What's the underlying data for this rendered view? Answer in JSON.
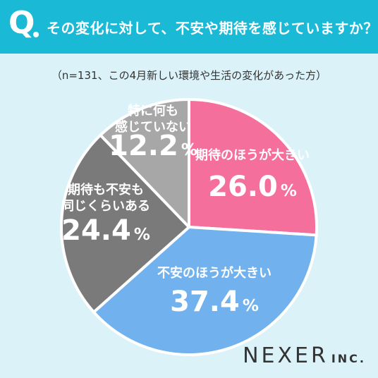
{
  "header": {
    "icon": "Q",
    "question": "その変化に対して、不安や期待を感じていますか？",
    "background_color": "#1ab9d6"
  },
  "note": "（n=131、この4月新しい環境や生活の変化があった方）",
  "chart_data": {
    "type": "pie",
    "n": 131,
    "slices": [
      {
        "label_lines": [
          "期待のほうが大きい"
        ],
        "value": 26.0,
        "display": "26.0",
        "color": "#f56f9c",
        "label_color": "#ffffff"
      },
      {
        "label_lines": [
          "不安のほうが大きい"
        ],
        "value": 37.4,
        "display": "37.4",
        "color": "#71b2ee",
        "label_color": "#ffffff"
      },
      {
        "label_lines": [
          "期待も不安も",
          "同じくらいある"
        ],
        "value": 24.4,
        "display": "24.4",
        "color": "#7b7a7a",
        "label_color": "#ffffff"
      },
      {
        "label_lines": [
          "特に何も",
          "感じていない"
        ],
        "value": 12.2,
        "display": "12.2",
        "color": "#a7a7a7",
        "label_color": "#ffffff"
      }
    ],
    "unit": "%"
  },
  "brand": {
    "main": "NEXER",
    "sub": "INC."
  }
}
